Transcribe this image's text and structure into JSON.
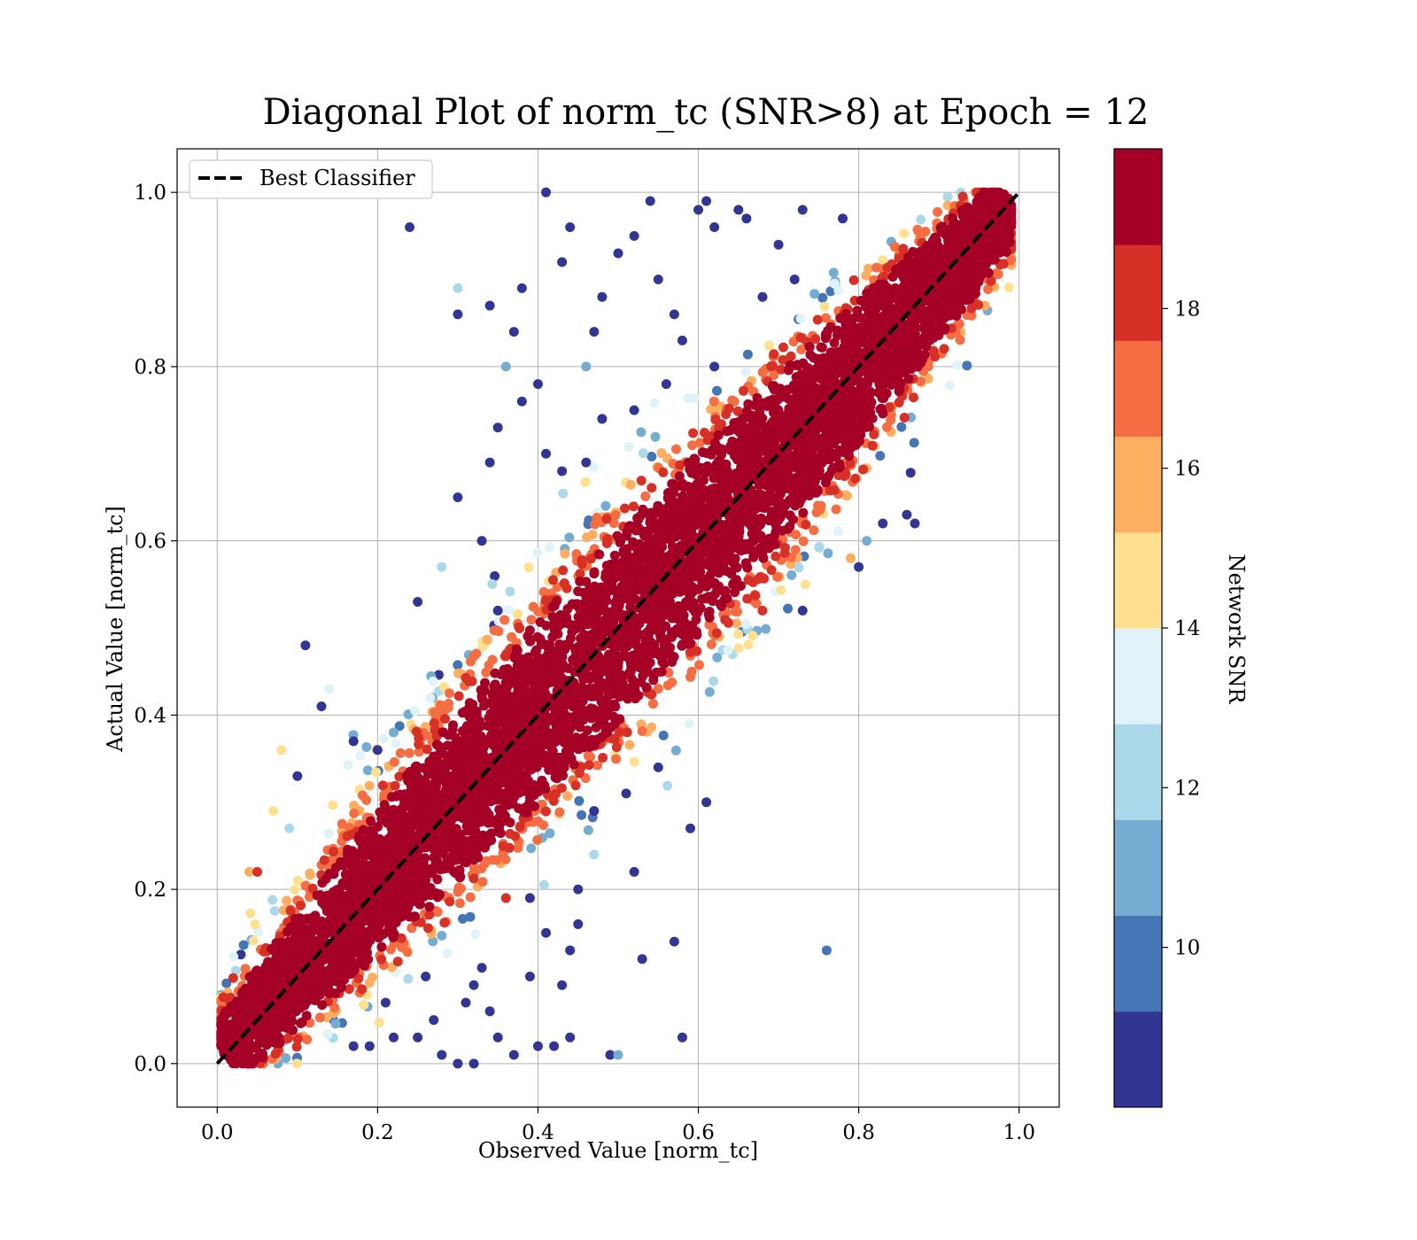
{
  "chart_data": {
    "type": "scatter",
    "title": "Diagonal Plot of norm_tc (SNR>8) at Epoch = 12",
    "xlabel": "Observed Value [norm_tc]",
    "ylabel": "Actual Value [norm_tc]",
    "xlim": [
      -0.05,
      1.05
    ],
    "ylim": [
      -0.05,
      1.05
    ],
    "xticks": [
      "0.0",
      "0.2",
      "0.4",
      "0.6",
      "0.8",
      "1.0"
    ],
    "yticks": [
      "0.0",
      "0.2",
      "0.4",
      "0.6",
      "0.8",
      "1.0"
    ],
    "grid": true,
    "legend": {
      "position": "top-left",
      "entries": [
        "Best Classifier"
      ]
    },
    "reference_line": {
      "name": "Best Classifier",
      "style": "dashed",
      "color": "#000000",
      "x": [
        0,
        1
      ],
      "y": [
        0,
        1
      ]
    },
    "colorbar": {
      "label": "Network SNR",
      "range": [
        8,
        20
      ],
      "ticks": [
        "10",
        "12",
        "14",
        "16",
        "18"
      ],
      "colormap": "RdYlBu_r",
      "colors": [
        "#313695",
        "#4575b4",
        "#74add1",
        "#abd9e9",
        "#e0f3f8",
        "#fee090",
        "#fdae61",
        "#f46d43",
        "#d73027",
        "#a50026"
      ]
    },
    "outliers": [
      {
        "x": 0.41,
        "y": 1.0,
        "snr": 9
      },
      {
        "x": 0.24,
        "y": 0.96,
        "snr": 9
      },
      {
        "x": 0.54,
        "y": 0.99,
        "snr": 9
      },
      {
        "x": 0.44,
        "y": 0.96,
        "snr": 9
      },
      {
        "x": 0.43,
        "y": 0.92,
        "snr": 9
      },
      {
        "x": 0.3,
        "y": 0.89,
        "snr": 12
      },
      {
        "x": 0.3,
        "y": 0.86,
        "snr": 9
      },
      {
        "x": 0.34,
        "y": 0.87,
        "snr": 9
      },
      {
        "x": 0.38,
        "y": 0.89,
        "snr": 9
      },
      {
        "x": 0.37,
        "y": 0.84,
        "snr": 9
      },
      {
        "x": 0.36,
        "y": 0.8,
        "snr": 11
      },
      {
        "x": 0.4,
        "y": 0.78,
        "snr": 9
      },
      {
        "x": 0.41,
        "y": 0.7,
        "snr": 9
      },
      {
        "x": 0.35,
        "y": 0.73,
        "snr": 9
      },
      {
        "x": 0.34,
        "y": 0.69,
        "snr": 9
      },
      {
        "x": 0.3,
        "y": 0.65,
        "snr": 9
      },
      {
        "x": 0.47,
        "y": 0.84,
        "snr": 9
      },
      {
        "x": 0.48,
        "y": 0.88,
        "snr": 9
      },
      {
        "x": 0.5,
        "y": 0.93,
        "snr": 9
      },
      {
        "x": 0.52,
        "y": 0.95,
        "snr": 9
      },
      {
        "x": 0.55,
        "y": 0.9,
        "snr": 9
      },
      {
        "x": 0.46,
        "y": 0.8,
        "snr": 11
      },
      {
        "x": 0.6,
        "y": 0.98,
        "snr": 9
      },
      {
        "x": 0.61,
        "y": 0.99,
        "snr": 9
      },
      {
        "x": 0.65,
        "y": 0.98,
        "snr": 9
      },
      {
        "x": 0.62,
        "y": 0.96,
        "snr": 9
      },
      {
        "x": 0.66,
        "y": 0.97,
        "snr": 9
      },
      {
        "x": 0.73,
        "y": 0.98,
        "snr": 9
      },
      {
        "x": 0.78,
        "y": 0.97,
        "snr": 9
      },
      {
        "x": 0.7,
        "y": 0.94,
        "snr": 9
      },
      {
        "x": 0.68,
        "y": 0.88,
        "snr": 9
      },
      {
        "x": 0.72,
        "y": 0.9,
        "snr": 9
      },
      {
        "x": 0.57,
        "y": 0.86,
        "snr": 9
      },
      {
        "x": 0.58,
        "y": 0.83,
        "snr": 9
      },
      {
        "x": 0.56,
        "y": 0.78,
        "snr": 9
      },
      {
        "x": 0.62,
        "y": 0.8,
        "snr": 9
      },
      {
        "x": 0.52,
        "y": 0.75,
        "snr": 9
      },
      {
        "x": 0.48,
        "y": 0.74,
        "snr": 9
      },
      {
        "x": 0.43,
        "y": 0.68,
        "snr": 9
      },
      {
        "x": 0.46,
        "y": 0.69,
        "snr": 9
      },
      {
        "x": 0.38,
        "y": 0.76,
        "snr": 9
      },
      {
        "x": 0.33,
        "y": 0.6,
        "snr": 9
      },
      {
        "x": 0.25,
        "y": 0.53,
        "snr": 9
      },
      {
        "x": 0.28,
        "y": 0.57,
        "snr": 12
      },
      {
        "x": 0.11,
        "y": 0.48,
        "snr": 9
      },
      {
        "x": 0.14,
        "y": 0.43,
        "snr": 13
      },
      {
        "x": 0.13,
        "y": 0.41,
        "snr": 9
      },
      {
        "x": 0.08,
        "y": 0.36,
        "snr": 14
      },
      {
        "x": 0.1,
        "y": 0.33,
        "snr": 9
      },
      {
        "x": 0.07,
        "y": 0.29,
        "snr": 14
      },
      {
        "x": 0.04,
        "y": 0.22,
        "snr": 16
      },
      {
        "x": 0.05,
        "y": 0.22,
        "snr": 18
      },
      {
        "x": 0.09,
        "y": 0.27,
        "snr": 12
      },
      {
        "x": 0.35,
        "y": 0.52,
        "snr": 9
      },
      {
        "x": 0.22,
        "y": 0.38,
        "snr": 11
      },
      {
        "x": 0.17,
        "y": 0.37,
        "snr": 9
      },
      {
        "x": 0.2,
        "y": 0.36,
        "snr": 9
      },
      {
        "x": 0.58,
        "y": 0.03,
        "snr": 9
      },
      {
        "x": 0.57,
        "y": 0.14,
        "snr": 9
      },
      {
        "x": 0.53,
        "y": 0.12,
        "snr": 9
      },
      {
        "x": 0.52,
        "y": 0.22,
        "snr": 9
      },
      {
        "x": 0.45,
        "y": 0.2,
        "snr": 9
      },
      {
        "x": 0.47,
        "y": 0.24,
        "snr": 12
      },
      {
        "x": 0.45,
        "y": 0.16,
        "snr": 9
      },
      {
        "x": 0.44,
        "y": 0.13,
        "snr": 9
      },
      {
        "x": 0.43,
        "y": 0.09,
        "snr": 9
      },
      {
        "x": 0.44,
        "y": 0.03,
        "snr": 9
      },
      {
        "x": 0.42,
        "y": 0.02,
        "snr": 9
      },
      {
        "x": 0.49,
        "y": 0.01,
        "snr": 9
      },
      {
        "x": 0.5,
        "y": 0.01,
        "snr": 11
      },
      {
        "x": 0.4,
        "y": 0.02,
        "snr": 9
      },
      {
        "x": 0.39,
        "y": 0.1,
        "snr": 9
      },
      {
        "x": 0.41,
        "y": 0.15,
        "snr": 9
      },
      {
        "x": 0.36,
        "y": 0.19,
        "snr": 18
      },
      {
        "x": 0.39,
        "y": 0.19,
        "snr": 9
      },
      {
        "x": 0.76,
        "y": 0.13,
        "snr": 10
      },
      {
        "x": 0.34,
        "y": 0.06,
        "snr": 9
      },
      {
        "x": 0.31,
        "y": 0.07,
        "snr": 9
      },
      {
        "x": 0.32,
        "y": 0.09,
        "snr": 9
      },
      {
        "x": 0.3,
        "y": 0.0,
        "snr": 9
      },
      {
        "x": 0.32,
        "y": 0.0,
        "snr": 9
      },
      {
        "x": 0.28,
        "y": 0.01,
        "snr": 9
      },
      {
        "x": 0.25,
        "y": 0.03,
        "snr": 9
      },
      {
        "x": 0.27,
        "y": 0.05,
        "snr": 9
      },
      {
        "x": 0.26,
        "y": 0.1,
        "snr": 9
      },
      {
        "x": 0.22,
        "y": 0.03,
        "snr": 9
      },
      {
        "x": 0.21,
        "y": 0.07,
        "snr": 9
      },
      {
        "x": 0.19,
        "y": 0.02,
        "snr": 9
      },
      {
        "x": 0.17,
        "y": 0.02,
        "snr": 9
      },
      {
        "x": 0.37,
        "y": 0.01,
        "snr": 9
      },
      {
        "x": 0.35,
        "y": 0.03,
        "snr": 9
      },
      {
        "x": 0.33,
        "y": 0.11,
        "snr": 9
      },
      {
        "x": 0.47,
        "y": 0.29,
        "snr": 9
      },
      {
        "x": 0.51,
        "y": 0.31,
        "snr": 9
      },
      {
        "x": 0.55,
        "y": 0.34,
        "snr": 9
      },
      {
        "x": 0.61,
        "y": 0.3,
        "snr": 9
      },
      {
        "x": 0.59,
        "y": 0.27,
        "snr": 9
      },
      {
        "x": 0.87,
        "y": 0.62,
        "snr": 9
      },
      {
        "x": 0.86,
        "y": 0.63,
        "snr": 9
      },
      {
        "x": 0.83,
        "y": 0.62,
        "snr": 9
      },
      {
        "x": 0.79,
        "y": 0.58,
        "snr": 16
      },
      {
        "x": 0.8,
        "y": 0.57,
        "snr": 9
      },
      {
        "x": 0.81,
        "y": 0.6,
        "snr": 11
      },
      {
        "x": 0.73,
        "y": 0.52,
        "snr": 9
      },
      {
        "x": 0.68,
        "y": 0.52,
        "snr": 18
      }
    ]
  }
}
